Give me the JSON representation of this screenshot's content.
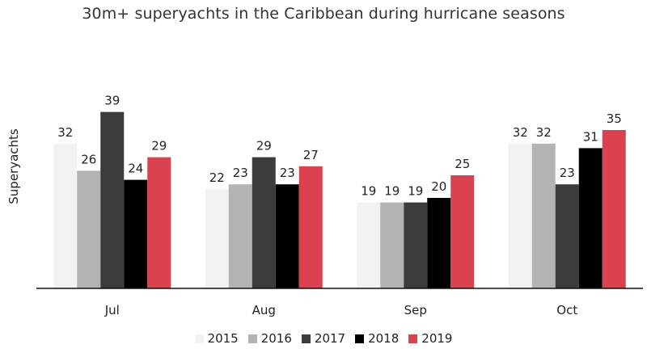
{
  "chart_data": {
    "type": "bar",
    "title": "30m+ superyachts in the Caribbean during hurricane seasons",
    "xlabel": "",
    "ylabel": "Superyachts",
    "categories": [
      "Jul",
      "Aug",
      "Sep",
      "Oct"
    ],
    "ylim": [
      0,
      40
    ],
    "grid": false,
    "legend_position": "bottom",
    "series": [
      {
        "name": "2015",
        "color": "#f2f2f2",
        "values": [
          32,
          22,
          19,
          32
        ]
      },
      {
        "name": "2016",
        "color": "#b3b3b3",
        "values": [
          26,
          23,
          19,
          32
        ]
      },
      {
        "name": "2017",
        "color": "#3c3c3c",
        "values": [
          39,
          29,
          19,
          23
        ]
      },
      {
        "name": "2018",
        "color": "#000000",
        "values": [
          24,
          23,
          20,
          31
        ]
      },
      {
        "name": "2019",
        "color": "#d9424e",
        "values": [
          29,
          27,
          25,
          35
        ]
      }
    ]
  }
}
